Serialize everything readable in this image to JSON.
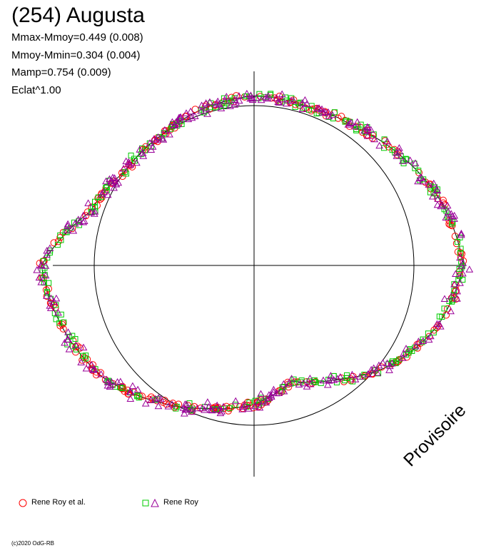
{
  "title": "(254) Augusta",
  "stats": [
    "Mmax-Mmoy=0.449 (0.008)",
    "Mmoy-Mmin=0.304 (0.004)",
    "Mamp=0.754 (0.009)",
    "Eclat^1.00"
  ],
  "watermark": "Provisoire",
  "credit": "(c)2020 OdG-RB",
  "colors": {
    "series_circle": "#ff0000",
    "series_square": "#00cc00",
    "series_triangle": "#990099",
    "curve": "#000000",
    "axes": "#000000"
  },
  "chart_data": {
    "type": "scatter",
    "title": "(254) Augusta",
    "subtitle": [
      "Mmax-Mmoy=0.449 (0.008)",
      "Mmoy-Mmin=0.304 (0.004)",
      "Mamp=0.754 (0.009)",
      "Eclat^1.00"
    ],
    "projection": "polar",
    "reference_circle": true,
    "axes_crosshair": true,
    "legend": [
      {
        "label": "Rene Roy et al.",
        "markers": [
          "circle"
        ]
      },
      {
        "label": "Rene Roy",
        "markers": [
          "square",
          "triangle"
        ]
      }
    ],
    "fit_curve": {
      "description": "mean light curve",
      "phase": [
        0.0,
        0.05,
        0.1,
        0.15,
        0.2,
        0.25,
        0.3,
        0.35,
        0.4,
        0.45,
        0.5,
        0.55,
        0.6,
        0.65,
        0.7,
        0.75,
        0.8,
        0.85,
        0.9,
        0.95
      ],
      "brightness": [
        1.31,
        1.24,
        1.15,
        1.07,
        1.05,
        1.06,
        1.03,
        1.0,
        1.0,
        1.08,
        1.33,
        1.26,
        1.18,
        1.05,
        0.94,
        0.87,
        0.76,
        0.88,
        1.06,
        1.21
      ]
    },
    "series": [
      {
        "name": "Rene Roy et al.",
        "marker": "circle",
        "color": "#ff0000"
      },
      {
        "name": "Rene Roy",
        "marker": "square",
        "color": "#00cc00"
      },
      {
        "name": "Rene Roy",
        "marker": "triangle",
        "color": "#990099"
      }
    ]
  },
  "legend": {
    "item1_label": "Rene Roy et al.",
    "item2_label": "Rene Roy"
  }
}
